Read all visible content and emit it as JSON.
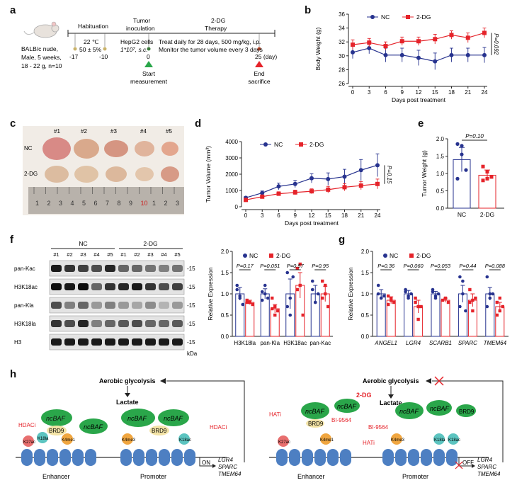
{
  "panels": {
    "a": "a",
    "b": "b",
    "c": "c",
    "d": "d",
    "e": "e",
    "f": "f",
    "g": "g",
    "h": "h"
  },
  "colors": {
    "nc": "#27338f",
    "dg": "#e5232a",
    "green": "#1f9e3a",
    "ncbaf": "#2aa64a",
    "brd9": "#f3e3a6",
    "nuc": "#4d7fc2"
  },
  "timeline": {
    "mouse_lines": [
      "BALB/c nude,",
      "Male, 5 weeks,",
      "18 - 22 g, n=10"
    ],
    "stages": [
      "Habituation",
      "Tumor",
      "inoculation",
      "2-DG",
      "Therapy"
    ],
    "hab_temp": "22 ℃",
    "hab_hum": "50 ± 5%",
    "cells": "HepG2 cells",
    "cells_dose": "1*10⁷, s.c.",
    "treat1": "Treat daily for 28 days, 500 mg/kg, i.p.",
    "treat2": "Monitor the tumor volume every 3 days",
    "ticks": [
      "-17",
      "-10",
      "0",
      "25 (day)"
    ],
    "start": [
      "Start",
      "measurement"
    ],
    "end": [
      "End",
      "sacrifice"
    ]
  },
  "chart_data": [
    {
      "id": "b",
      "type": "line",
      "ylabel": "Body Weight (g)",
      "xlabel": "Days post treatment",
      "x": [
        0,
        3,
        6,
        9,
        12,
        15,
        18,
        21,
        24
      ],
      "ylim": [
        26,
        36
      ],
      "yticks": [
        26,
        28,
        30,
        32,
        34,
        36
      ],
      "legend": [
        "NC",
        "2-DG"
      ],
      "pvalue": "P=0.092",
      "series": [
        {
          "name": "NC",
          "values": [
            30.5,
            31.1,
            30.1,
            30.1,
            29.7,
            29.2,
            30.1,
            30.1,
            30.1
          ],
          "err": [
            0.9,
            0.8,
            1.0,
            1.0,
            1.1,
            1.2,
            1.0,
            1.0,
            1.1
          ]
        },
        {
          "name": "2-DG",
          "values": [
            31.6,
            31.9,
            31.4,
            32.1,
            32.1,
            32.4,
            33.0,
            32.6,
            33.3
          ],
          "err": [
            0.7,
            0.6,
            0.6,
            0.6,
            0.6,
            0.7,
            0.6,
            0.7,
            0.7
          ]
        }
      ]
    },
    {
      "id": "d",
      "type": "line",
      "ylabel": "Tumor Volume (mm³)",
      "xlabel": "Days post treatment",
      "x": [
        0,
        3,
        6,
        9,
        12,
        15,
        18,
        21,
        24
      ],
      "ylim": [
        0,
        4000
      ],
      "yticks": [
        0,
        1000,
        2000,
        3000,
        4000
      ],
      "legend": [
        "NC",
        "2-DG"
      ],
      "pvalue": "P=0.15",
      "series": [
        {
          "name": "NC",
          "values": [
            550,
            850,
            1250,
            1400,
            1750,
            1700,
            1850,
            2250,
            2550
          ],
          "err": [
            80,
            120,
            200,
            220,
            280,
            380,
            450,
            650,
            700
          ]
        },
        {
          "name": "2-DG",
          "values": [
            420,
            620,
            800,
            880,
            950,
            1050,
            1200,
            1300,
            1400
          ],
          "err": [
            60,
            90,
            120,
            140,
            150,
            200,
            220,
            250,
            300
          ]
        }
      ]
    },
    {
      "id": "e",
      "type": "bar",
      "ylabel": "Tumor Weight (g)",
      "categories": [
        "NC",
        "2-DG"
      ],
      "ylim": [
        0,
        2.0
      ],
      "yticks": [
        0.0,
        0.5,
        1.0,
        1.5,
        2.0
      ],
      "values": [
        1.4,
        0.95
      ],
      "err": [
        0.35,
        0.15
      ],
      "pvalue": "P=0.10",
      "points": [
        [
          1.85,
          1.55,
          1.1,
          0.85,
          1.8
        ],
        [
          1.2,
          1.05,
          0.9,
          0.8,
          0.85
        ]
      ]
    },
    {
      "id": "f",
      "type": "bar",
      "ylabel": "Relative Expression",
      "categories": [
        "H3K18la",
        "pan-Kla",
        "H3K18ac",
        "pan-Kac"
      ],
      "ylim": [
        0,
        2.0
      ],
      "yticks": [
        0.0,
        0.5,
        1.0,
        1.5,
        2.0
      ],
      "legend": [
        "NC",
        "2-DG"
      ],
      "pvalues": [
        "P=0.17",
        "P=0.051",
        "P=0.57",
        "P=0.95"
      ],
      "series": [
        {
          "name": "NC",
          "values": [
            1.0,
            1.0,
            1.0,
            1.0
          ],
          "err": [
            0.15,
            0.12,
            0.35,
            0.2
          ],
          "points": [
            [
              1.2,
              0.95,
              0.75,
              1.1,
              0.9
            ],
            [
              1.05,
              1.2,
              0.9,
              0.85,
              1.0
            ],
            [
              1.5,
              0.5,
              1.4,
              0.7,
              0.9
            ],
            [
              1.3,
              0.8,
              1.0,
              1.1,
              0.8
            ]
          ]
        },
        {
          "name": "2-DG",
          "values": [
            0.8,
            0.65,
            1.2,
            1.0
          ],
          "err": [
            0.05,
            0.1,
            0.3,
            0.18
          ],
          "points": [
            [
              0.85,
              0.8,
              0.75,
              0.8,
              0.8
            ],
            [
              0.9,
              0.5,
              0.6,
              0.65,
              0.7
            ],
            [
              1.6,
              1.7,
              0.5,
              1.1,
              1.2
            ],
            [
              1.3,
              1.2,
              0.7,
              0.9,
              1.0
            ]
          ]
        }
      ]
    },
    {
      "id": "g",
      "type": "bar",
      "ylabel": "Relative Expression",
      "categories": [
        "ANGEL1",
        "LGR4",
        "SCARB1",
        "SPARC",
        "TMEM64"
      ],
      "ylim": [
        0,
        2.0
      ],
      "yticks": [
        0.0,
        0.5,
        1.0,
        1.5,
        2.0
      ],
      "legend": [
        "NC",
        "2-DG"
      ],
      "pvalues": [
        "P=0.36",
        "P=0.060",
        "P=0.053",
        "P=0.44",
        "P=0.088"
      ],
      "series": [
        {
          "name": "NC",
          "values": [
            1.0,
            1.0,
            1.0,
            1.0,
            1.0
          ],
          "err": [
            0.1,
            0.08,
            0.06,
            0.2,
            0.15
          ],
          "points": [
            [
              1.2,
              0.9,
              0.95,
              1.0,
              0.9
            ],
            [
              1.1,
              0.9,
              1.0,
              1.05,
              0.95
            ],
            [
              1.05,
              0.95,
              1.0,
              1.1,
              0.9
            ],
            [
              1.4,
              1.3,
              0.6,
              0.7,
              1.0
            ],
            [
              1.4,
              0.9,
              1.0,
              0.7,
              1.0
            ]
          ]
        },
        {
          "name": "2-DG",
          "values": [
            0.85,
            0.7,
            0.85,
            0.85,
            0.7
          ],
          "err": [
            0.08,
            0.15,
            0.05,
            0.15,
            0.1
          ],
          "points": [
            [
              0.95,
              0.85,
              0.8,
              0.75,
              0.9
            ],
            [
              0.9,
              0.4,
              0.7,
              0.8,
              0.7
            ],
            [
              0.85,
              0.9,
              0.8
            ],
            [
              1.1,
              0.6,
              0.9,
              0.8,
              0.85
            ],
            [
              0.8,
              0.6,
              0.7,
              0.5,
              0.9
            ]
          ]
        }
      ]
    }
  ],
  "photo": {
    "samples": [
      "#1",
      "#2",
      "#3",
      "#4",
      "#5"
    ],
    "rows": [
      "NC",
      "2-DG"
    ],
    "ruler": [
      "1",
      "2",
      "3",
      "4",
      "5",
      "6",
      "7",
      "8",
      "9",
      "10",
      "1",
      "2",
      "3"
    ]
  },
  "blot": {
    "groups": [
      "NC",
      "2-DG"
    ],
    "lanes": [
      "#1",
      "#2",
      "#3",
      "#4",
      "#5",
      "#1",
      "#2",
      "#3",
      "#4",
      "#5"
    ],
    "rows": [
      "pan-Kac",
      "H3K18ac",
      "pan-Kla",
      "H3K18la",
      "H3"
    ],
    "marker": "-15",
    "unit": "kDa"
  },
  "scheme": {
    "aerobic": "Aerobic glycolysis",
    "lactate": "Lactate",
    "dg": "2-DG",
    "ncbaf": "ncBAF",
    "brd9": "BRD9",
    "hat": "HATi",
    "hdac": "HDACi",
    "bi": "BI-9564",
    "marks": [
      "K18la",
      "K27ac",
      "K18ac",
      "K4me1",
      "K4me3"
    ],
    "enhancer": "Enhancer",
    "promoter": "Promoter",
    "on": "ON",
    "off": "OFF",
    "genes": [
      "LGR4",
      "SPARC",
      "TMEM64"
    ]
  }
}
